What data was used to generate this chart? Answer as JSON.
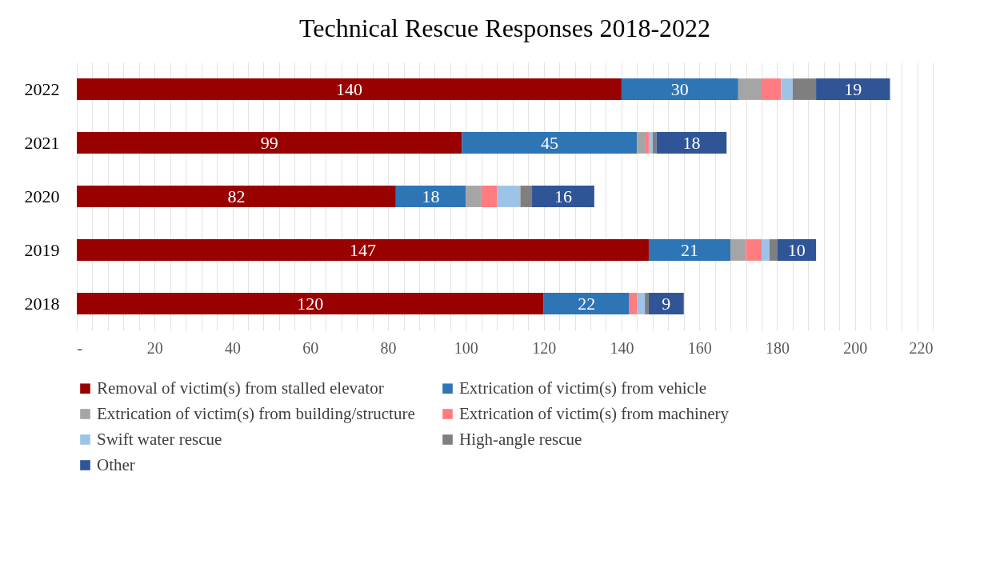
{
  "chart_data": {
    "type": "bar",
    "orientation": "horizontal",
    "stacked": true,
    "title": "Technical Rescue Responses 2018-2022",
    "categories": [
      "2022",
      "2021",
      "2020",
      "2019",
      "2018"
    ],
    "series": [
      {
        "name": "Removal of victim(s) from stalled elevator",
        "color": "#990000",
        "values": [
          140,
          99,
          82,
          147,
          120
        ],
        "value_labels": [
          "140",
          "99",
          "82",
          "147",
          "120"
        ]
      },
      {
        "name": "Extrication of victim(s) from vehicle",
        "color": "#2e75b6",
        "values": [
          30,
          45,
          18,
          21,
          22
        ],
        "value_labels": [
          "30",
          "45",
          "18",
          "21",
          "22"
        ]
      },
      {
        "name": "Extrication of victim(s) from building/structure",
        "color": "#a5a5a5",
        "values": [
          6,
          2,
          4,
          4,
          0
        ]
      },
      {
        "name": "Extrication of victim(s) from machinery",
        "color": "#ff7c80",
        "values": [
          5,
          1,
          4,
          4,
          2
        ]
      },
      {
        "name": "Swift water rescue",
        "color": "#9dc3e6",
        "values": [
          3,
          1,
          6,
          2,
          2
        ]
      },
      {
        "name": "High-angle rescue",
        "color": "#7f7f7f",
        "values": [
          6,
          1,
          3,
          2,
          1
        ]
      },
      {
        "name": "Other",
        "color": "#2f5597",
        "values": [
          19,
          18,
          16,
          10,
          9
        ],
        "value_labels": [
          "19",
          "18",
          "16",
          "10",
          "9"
        ]
      }
    ],
    "xlim": [
      0,
      220
    ],
    "xticks": [
      {
        "value": 0,
        "label": "-"
      },
      {
        "value": 4,
        "label": null
      },
      {
        "value": 8,
        "label": null
      },
      {
        "value": 12,
        "label": null
      },
      {
        "value": 16,
        "label": null
      },
      20,
      {
        "value": 24,
        "label": null
      },
      {
        "value": 28,
        "label": null
      },
      {
        "value": 32,
        "label": null
      },
      {
        "value": 36,
        "label": null
      },
      40,
      {
        "value": 44,
        "label": null
      },
      {
        "value": 48,
        "label": null
      },
      {
        "value": 52,
        "label": null
      },
      {
        "value": 56,
        "label": null
      },
      60,
      {
        "value": 64,
        "label": null
      },
      {
        "value": 68,
        "label": null
      },
      {
        "value": 72,
        "label": null
      },
      {
        "value": 76,
        "label": null
      },
      80,
      {
        "value": 84,
        "label": null
      },
      {
        "value": 88,
        "label": null
      },
      {
        "value": 92,
        "label": null
      },
      {
        "value": 96,
        "label": null
      },
      100,
      {
        "value": 104,
        "label": null
      },
      {
        "value": 108,
        "label": null
      },
      {
        "value": 112,
        "label": null
      },
      {
        "value": 116,
        "label": null
      },
      120,
      {
        "value": 124,
        "label": null
      },
      {
        "value": 128,
        "label": null
      },
      {
        "value": 132,
        "label": null
      },
      {
        "value": 136,
        "label": null
      },
      140,
      {
        "value": 144,
        "label": null
      },
      {
        "value": 148,
        "label": null
      },
      {
        "value": 152,
        "label": null
      },
      {
        "value": 156,
        "label": null
      },
      160,
      {
        "value": 164,
        "label": null
      },
      {
        "value": 168,
        "label": null
      },
      {
        "value": 172,
        "label": null
      },
      {
        "value": 176,
        "label": null
      },
      180,
      {
        "value": 184,
        "label": null
      },
      {
        "value": 188,
        "label": null
      },
      {
        "value": 192,
        "label": null
      },
      {
        "value": 196,
        "label": null
      },
      200,
      {
        "value": 204,
        "label": null
      },
      {
        "value": 208,
        "label": null
      },
      {
        "value": 212,
        "label": null
      },
      {
        "value": 216,
        "label": null
      },
      220
    ],
    "grid": "x",
    "legend": "bottom"
  }
}
